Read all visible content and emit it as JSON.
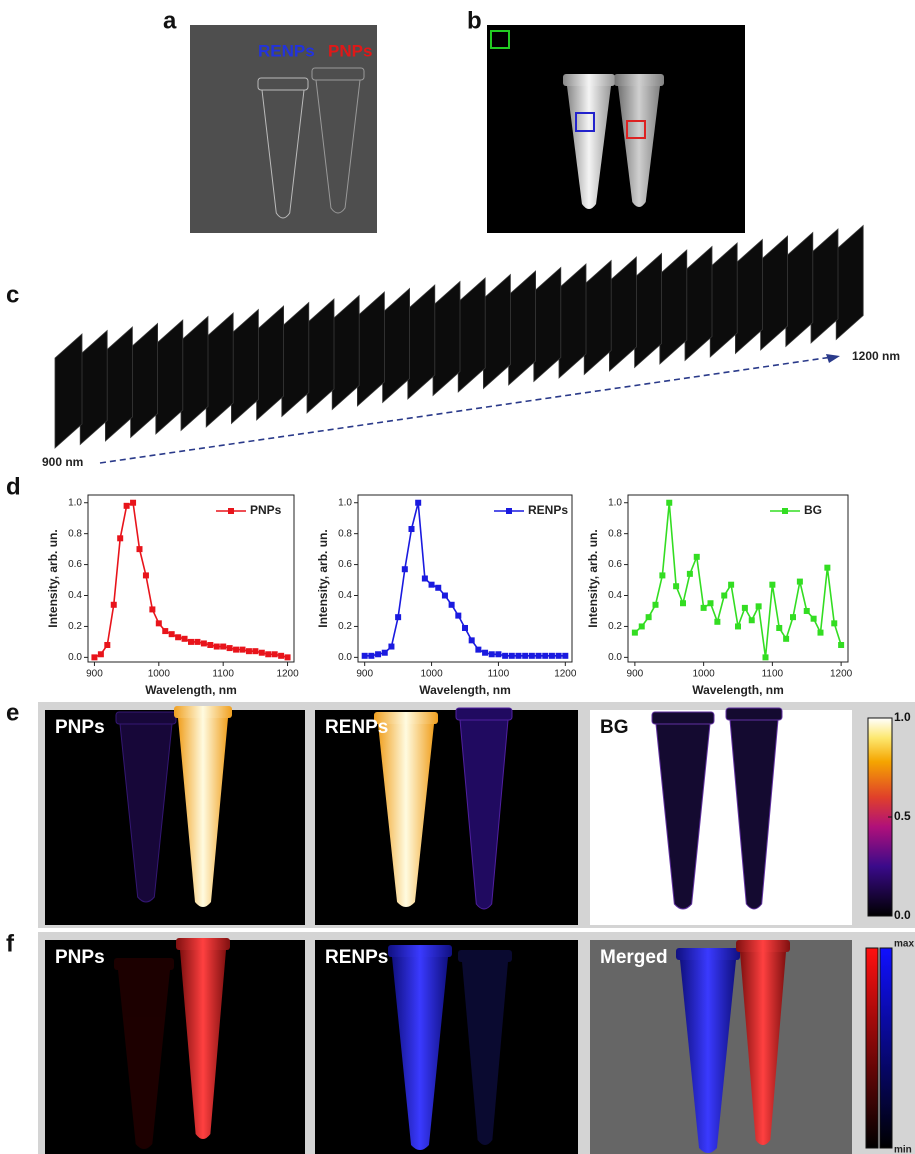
{
  "panel_labels": [
    "a",
    "b",
    "c",
    "d",
    "e",
    "f"
  ],
  "panel_a": {
    "labels": [
      "RENPs",
      "PNPs"
    ]
  },
  "panel_c": {
    "start": "900 nm",
    "end": "1200 nm"
  },
  "chart_data": [
    {
      "type": "line",
      "xlabel": "Wavelength, nm",
      "ylabel": "Intensity, arb. un.",
      "legend": "upper right",
      "x": [
        900,
        910,
        920,
        930,
        940,
        950,
        960,
        970,
        980,
        990,
        1000,
        1010,
        1020,
        1030,
        1040,
        1050,
        1060,
        1070,
        1080,
        1090,
        1100,
        1110,
        1120,
        1130,
        1140,
        1150,
        1160,
        1170,
        1180,
        1190,
        1200
      ],
      "series": [
        {
          "name": "PNPs",
          "color": "#e8141b",
          "values": [
            0.0,
            0.02,
            0.08,
            0.34,
            0.77,
            0.98,
            1.0,
            0.7,
            0.53,
            0.31,
            0.22,
            0.17,
            0.15,
            0.13,
            0.12,
            0.1,
            0.1,
            0.09,
            0.08,
            0.07,
            0.07,
            0.06,
            0.05,
            0.05,
            0.04,
            0.04,
            0.03,
            0.02,
            0.02,
            0.01,
            0.0
          ]
        }
      ],
      "xlim": [
        890,
        1210
      ],
      "ylim": [
        -0.03,
        1.05
      ],
      "xticks": [
        900,
        1000,
        1100,
        1200
      ],
      "yticks": [
        {
          "value": 0,
          "label": "0.0"
        },
        0.2,
        0.4,
        0.6,
        0.8,
        {
          "value": 1,
          "label": "1.0"
        }
      ]
    },
    {
      "type": "line",
      "xlabel": "Wavelength, nm",
      "ylabel": "Intensity, arb. un.",
      "legend": "upper right",
      "x": [
        900,
        910,
        920,
        930,
        940,
        950,
        960,
        970,
        980,
        990,
        1000,
        1010,
        1020,
        1030,
        1040,
        1050,
        1060,
        1070,
        1080,
        1090,
        1100,
        1110,
        1120,
        1130,
        1140,
        1150,
        1160,
        1170,
        1180,
        1190,
        1200
      ],
      "series": [
        {
          "name": "RENPs",
          "color": "#1a1adf",
          "values": [
            0.01,
            0.01,
            0.02,
            0.03,
            0.07,
            0.26,
            0.57,
            0.83,
            1.0,
            0.51,
            0.47,
            0.45,
            0.4,
            0.34,
            0.27,
            0.19,
            0.11,
            0.05,
            0.03,
            0.02,
            0.02,
            0.01,
            0.01,
            0.01,
            0.01,
            0.01,
            0.01,
            0.01,
            0.01,
            0.01,
            0.01
          ]
        }
      ],
      "xlim": [
        890,
        1210
      ],
      "ylim": [
        -0.03,
        1.05
      ],
      "xticks": [
        900,
        1000,
        1100,
        1200
      ],
      "yticks": [
        {
          "value": 0,
          "label": "0.0"
        },
        0.2,
        0.4,
        0.6,
        0.8,
        {
          "value": 1,
          "label": "1.0"
        }
      ]
    },
    {
      "type": "line",
      "xlabel": "Wavelength, nm",
      "ylabel": "Intensity, arb. un.",
      "legend": "upper right",
      "x": [
        900,
        910,
        920,
        930,
        940,
        950,
        960,
        970,
        980,
        990,
        1000,
        1010,
        1020,
        1030,
        1040,
        1050,
        1060,
        1070,
        1080,
        1090,
        1100,
        1110,
        1120,
        1130,
        1140,
        1150,
        1160,
        1170,
        1180,
        1190,
        1200
      ],
      "series": [
        {
          "name": "BG",
          "color": "#33dd22",
          "values": [
            0.16,
            0.2,
            0.26,
            0.34,
            0.53,
            1.0,
            0.46,
            0.35,
            0.54,
            0.65,
            0.32,
            0.35,
            0.23,
            0.4,
            0.47,
            0.2,
            0.32,
            0.24,
            0.33,
            0.0,
            0.47,
            0.19,
            0.12,
            0.26,
            0.49,
            0.3,
            0.25,
            0.16,
            0.58,
            0.22,
            0.08
          ]
        }
      ],
      "xlim": [
        890,
        1210
      ],
      "ylim": [
        -0.03,
        1.05
      ],
      "xticks": [
        900,
        1000,
        1100,
        1200
      ],
      "yticks": [
        {
          "value": 0,
          "label": "0.0"
        },
        0.2,
        0.4,
        0.6,
        0.8,
        {
          "value": 1,
          "label": "1.0"
        }
      ]
    }
  ],
  "panel_e": {
    "titles": [
      "PNPs",
      "RENPs",
      "BG"
    ],
    "colorbar_range": [
      0,
      1
    ],
    "colorbar_ticks": [
      {
        "value": 1,
        "label": "1.0"
      },
      0.5,
      {
        "value": 0,
        "label": "0.0"
      }
    ]
  },
  "panel_f": {
    "titles": [
      "PNPs",
      "RENPs",
      "Merged"
    ],
    "colorbar_labels": [
      "max",
      "min"
    ]
  }
}
